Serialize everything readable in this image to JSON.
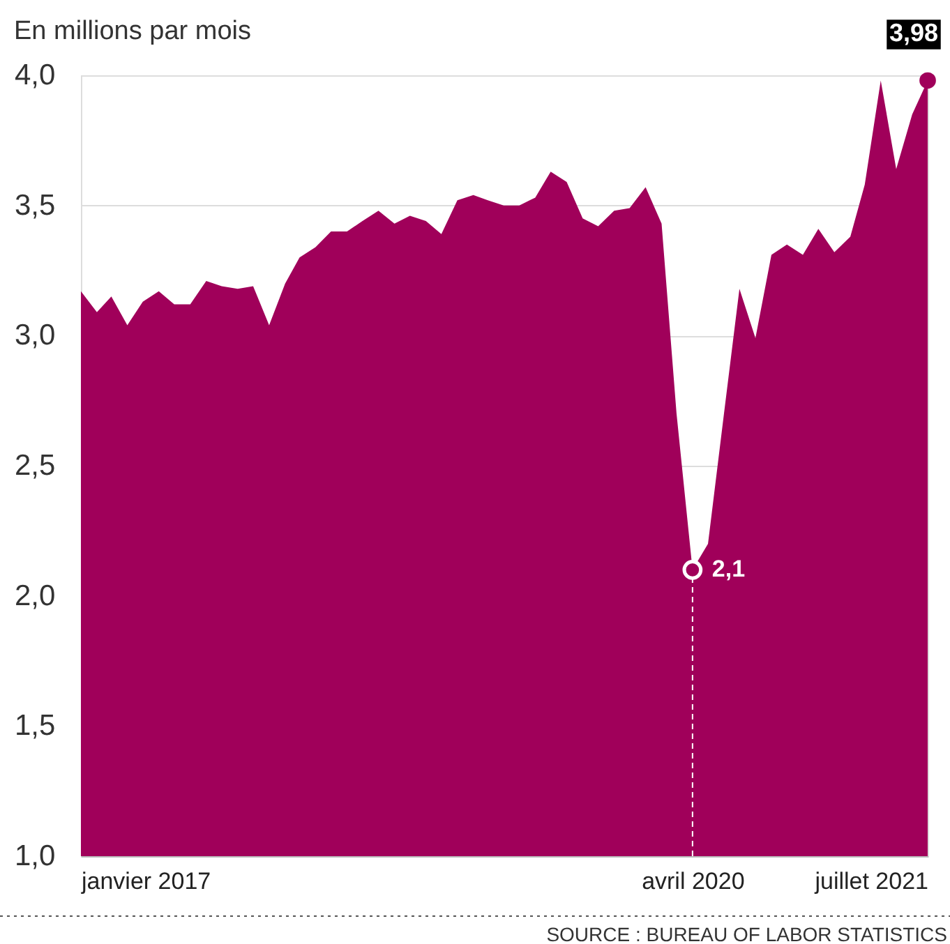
{
  "chart_data": {
    "type": "area",
    "subtitle": "En millions par mois",
    "x": [
      "2017-01",
      "2017-02",
      "2017-03",
      "2017-04",
      "2017-05",
      "2017-06",
      "2017-07",
      "2017-08",
      "2017-09",
      "2017-10",
      "2017-11",
      "2017-12",
      "2018-01",
      "2018-02",
      "2018-03",
      "2018-04",
      "2018-05",
      "2018-06",
      "2018-07",
      "2018-08",
      "2018-09",
      "2018-10",
      "2018-11",
      "2018-12",
      "2019-01",
      "2019-02",
      "2019-03",
      "2019-04",
      "2019-05",
      "2019-06",
      "2019-07",
      "2019-08",
      "2019-09",
      "2019-10",
      "2019-11",
      "2019-12",
      "2020-01",
      "2020-02",
      "2020-03",
      "2020-04",
      "2020-05",
      "2020-06",
      "2020-07",
      "2020-08",
      "2020-09",
      "2020-10",
      "2020-11",
      "2020-12",
      "2021-01",
      "2021-02",
      "2021-03",
      "2021-04",
      "2021-05",
      "2021-06",
      "2021-07"
    ],
    "series": [
      {
        "color": "#a0005a",
        "values": [
          3.17,
          3.09,
          3.15,
          3.04,
          3.13,
          3.17,
          3.12,
          3.12,
          3.21,
          3.19,
          3.18,
          3.19,
          3.04,
          3.2,
          3.3,
          3.34,
          3.4,
          3.4,
          3.44,
          3.48,
          3.43,
          3.46,
          3.44,
          3.39,
          3.52,
          3.54,
          3.52,
          3.5,
          3.5,
          3.53,
          3.63,
          3.59,
          3.45,
          3.42,
          3.48,
          3.49,
          3.57,
          3.43,
          2.7,
          2.1,
          2.2,
          2.7,
          3.18,
          2.99,
          3.31,
          3.35,
          3.31,
          3.41,
          3.32,
          3.38,
          3.58,
          3.98,
          3.64,
          3.85,
          3.98
        ],
        "value_labels": [
          null,
          null,
          null,
          null,
          null,
          null,
          null,
          null,
          null,
          null,
          null,
          null,
          null,
          null,
          null,
          null,
          null,
          null,
          null,
          null,
          null,
          null,
          null,
          null,
          null,
          null,
          null,
          null,
          null,
          null,
          null,
          null,
          null,
          null,
          null,
          null,
          null,
          null,
          null,
          "2,1",
          null,
          null,
          null,
          null,
          null,
          null,
          null,
          null,
          null,
          null,
          null,
          null,
          null,
          null,
          "3,98"
        ]
      }
    ],
    "xlim": [
      "2017-01",
      "2021-07"
    ],
    "xticks": [
      {
        "value": "2017-01",
        "label": "janvier 2017"
      },
      {
        "value": "2020-04",
        "label": "avril 2020"
      },
      {
        "value": "2021-07",
        "label": "juillet 2021"
      }
    ],
    "ylim": [
      1.0,
      4.0
    ],
    "yticks": [
      {
        "value": 1.0,
        "label": "1,0"
      },
      {
        "value": 1.5,
        "label": "1,5"
      },
      {
        "value": 2.0,
        "label": "2,0"
      },
      {
        "value": 2.5,
        "label": "2,5"
      },
      {
        "value": 3.0,
        "label": "3,0"
      },
      {
        "value": 3.5,
        "label": "3,5"
      },
      {
        "value": 4.0,
        "label": "4,0"
      }
    ],
    "grid": "y",
    "ref_lines": [
      {
        "axis": "x",
        "value": "2020-04",
        "color": "#ffffff",
        "line_style": "dashed"
      }
    ],
    "annotations": [
      "SOURCE : BUREAU OF LABOR STATISTICS"
    ]
  }
}
